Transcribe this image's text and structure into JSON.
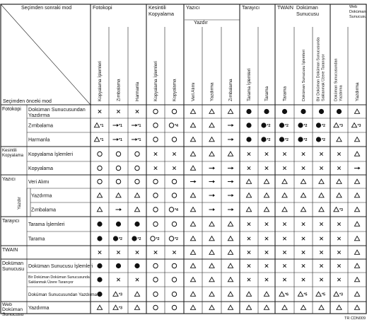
{
  "corner": {
    "top_label": "Seçimden sonraki mod",
    "bottom_label": "Seçimden önceki mod"
  },
  "col_groups": [
    {
      "label": "Fotokopi"
    },
    {
      "label": "Kesintili Kopyalama"
    },
    {
      "label": "Yazıcı",
      "sub": "Yazdır"
    },
    {
      "label": "Tarayıcı"
    },
    {
      "label": "TWAIN"
    },
    {
      "label": "Doküman Sunucusu"
    },
    {
      "label": "Web Doküman Sunucusu"
    }
  ],
  "columns": [
    "Kopyalama İşlemleri",
    "Zımbalama",
    "Harmanla",
    "Kopyalama İşlemleri",
    "Kopyalama",
    "Veri Alımı",
    "Yazdırma",
    "Zımbalama",
    "Tarama İşlemleri",
    "Tarama",
    "Tarama",
    "Doküman Sunucusu İşlemleri",
    "Bir Doküman Doküman Sunucusunda Saklanmak Üzere Taranıyor",
    "Doküman Sunucusundan Yazdırma",
    "Yazdırma"
  ],
  "row_groups": [
    {
      "label": "Fotokopi"
    },
    {
      "label": "Kesintili Kopyalama"
    },
    {
      "label": "Yazıcı",
      "sub": "Yazdır"
    },
    {
      "label": "Tarayıcı"
    },
    {
      "label": "TWAIN"
    },
    {
      "label": "Doküman Sunucusu"
    },
    {
      "label": "Web Doküman Sunucusu"
    }
  ],
  "rows": [
    {
      "label": "Doküman Sunucusundan Yazdırma",
      "cells": [
        "x",
        "x",
        "x",
        "o",
        "o",
        "t",
        "t",
        "t",
        "f",
        "f",
        "f",
        "f",
        "f",
        "f",
        "t"
      ]
    },
    {
      "label": "Zımbalama",
      "cells": [
        "t*1",
        "→*1",
        "→*1",
        "o",
        "o*4",
        "t",
        "t",
        "→",
        "f",
        "f*2",
        "f*2",
        "f*2",
        "f*2",
        "t*3",
        "t*3"
      ]
    },
    {
      "label": "Harmanla",
      "cells": [
        "t*1",
        "→*1",
        "→*1",
        "o",
        "o",
        "t",
        "t",
        "→",
        "f",
        "f*2",
        "f*2",
        "f*2",
        "f*2",
        "t",
        "t"
      ]
    },
    {
      "label": "Kopyalama İşlemleri",
      "cells": [
        "o",
        "o",
        "o",
        "x",
        "x",
        "t",
        "t",
        "t",
        "x",
        "x",
        "x",
        "x",
        "x",
        "x",
        "t"
      ]
    },
    {
      "label": "Kopyalama",
      "cells": [
        "o",
        "o",
        "o",
        "x",
        "x",
        "t",
        "→",
        "→",
        "x",
        "x",
        "x",
        "x",
        "x",
        "x",
        "→"
      ]
    },
    {
      "label": "Veri Alımı",
      "cells": [
        "o",
        "o",
        "o",
        "o",
        "o",
        "→",
        "→",
        "→",
        "t",
        "t",
        "t",
        "t",
        "t",
        "t",
        "t"
      ]
    },
    {
      "label": "Yazdırma",
      "cells": [
        "t",
        "t",
        "t",
        "o",
        "o",
        "t",
        "→",
        "→",
        "t",
        "t",
        "t",
        "t",
        "t",
        "t",
        "t"
      ]
    },
    {
      "label": "Zımbalama",
      "cells": [
        "t",
        "→",
        "t",
        "o",
        "o*4",
        "t",
        "→",
        "→",
        "t",
        "t",
        "t",
        "t",
        "t",
        "t*3",
        "t"
      ]
    },
    {
      "label": "Tarama İşlemleri",
      "cells": [
        "f",
        "f",
        "f",
        "o",
        "o",
        "t",
        "t",
        "t",
        "x",
        "x",
        "x",
        "x",
        "x",
        "x",
        "t"
      ]
    },
    {
      "label": "Tarama",
      "cells": [
        "f",
        "f*2",
        "f*2",
        "o*2",
        "o*2",
        "t",
        "t",
        "t",
        "x",
        "x",
        "x",
        "x",
        "x",
        "x",
        "t"
      ]
    },
    {
      "label": "",
      "cells": [
        "x",
        "x",
        "x",
        "x",
        "x",
        "t",
        "t",
        "t",
        "x",
        "x",
        "x",
        "x",
        "x",
        "x",
        "t"
      ]
    },
    {
      "label": "Doküman Sunucusu İşlemleri",
      "cells": [
        "f",
        "f",
        "f",
        "o",
        "o",
        "t",
        "t",
        "t",
        "x",
        "x",
        "x",
        "x",
        "x",
        "x",
        "t"
      ]
    },
    {
      "label": "Bir Doküman Doküman Sunucusunda Saklanmak Üzere Taranıyor",
      "cells": [
        "f",
        "x",
        "x",
        "o",
        "o",
        "t",
        "t",
        "t",
        "x",
        "x",
        "x",
        "x",
        "x",
        "x",
        "t"
      ]
    },
    {
      "label": "Doküman Sunucusundan Yazdırma",
      "cells": [
        "f",
        "t*3",
        "t",
        "o",
        "o",
        "t",
        "t",
        "t",
        "t",
        "t",
        "t*6",
        "t*5",
        "t*5",
        "t*3",
        "t"
      ]
    },
    {
      "label": "Yazdırma",
      "cells": [
        "t",
        "t*3",
        "t",
        "o",
        "o",
        "t",
        "t",
        "t",
        "t",
        "t",
        "t",
        "t",
        "t",
        "t",
        "t"
      ]
    }
  ],
  "footer_code": "TR CDN009"
}
